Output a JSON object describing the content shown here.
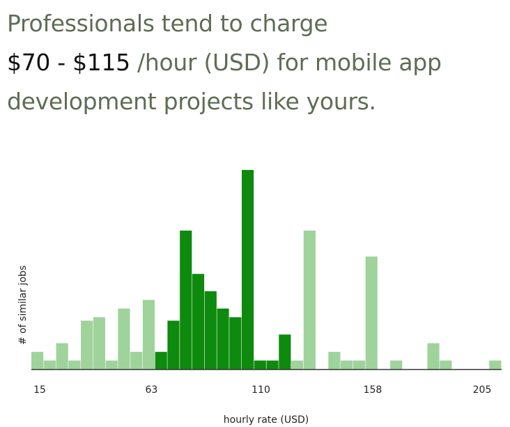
{
  "headline": {
    "line1": "Professionals tend to charge",
    "range": "$70 - $115",
    "line2_rest": " /hour (USD) for mobile app",
    "line3": "development projects like yours."
  },
  "colors": {
    "highlight": "#0e8a0e",
    "muted": "#9fd39b",
    "axis": "#333333"
  },
  "chart_data": {
    "type": "bar",
    "xlabel": "hourly rate (USD)",
    "ylabel": "# of similar jobs",
    "x_ticks": [
      "15",
      "63",
      "110",
      "158",
      "205"
    ],
    "xlim": [
      15,
      205
    ],
    "highlight_range": [
      70,
      115
    ],
    "bins": [
      {
        "value": 1,
        "highlighted": false
      },
      {
        "value": 0.5,
        "highlighted": false
      },
      {
        "value": 1.5,
        "highlighted": false
      },
      {
        "value": 0.5,
        "highlighted": false
      },
      {
        "value": 2.8,
        "highlighted": false
      },
      {
        "value": 3.0,
        "highlighted": false
      },
      {
        "value": 0.5,
        "highlighted": false
      },
      {
        "value": 3.5,
        "highlighted": false
      },
      {
        "value": 1,
        "highlighted": false
      },
      {
        "value": 4,
        "highlighted": false
      },
      {
        "value": 1,
        "highlighted": true
      },
      {
        "value": 2.8,
        "highlighted": true
      },
      {
        "value": 8,
        "highlighted": true
      },
      {
        "value": 5.5,
        "highlighted": true
      },
      {
        "value": 4.5,
        "highlighted": true
      },
      {
        "value": 3.5,
        "highlighted": true
      },
      {
        "value": 3,
        "highlighted": true
      },
      {
        "value": 11.5,
        "highlighted": true
      },
      {
        "value": 0.5,
        "highlighted": true
      },
      {
        "value": 0.5,
        "highlighted": true
      },
      {
        "value": 2,
        "highlighted": true
      },
      {
        "value": 0.5,
        "highlighted": false
      },
      {
        "value": 8,
        "highlighted": false
      },
      {
        "value": 0,
        "highlighted": false
      },
      {
        "value": 1,
        "highlighted": false
      },
      {
        "value": 0.5,
        "highlighted": false
      },
      {
        "value": 0.5,
        "highlighted": false
      },
      {
        "value": 6.5,
        "highlighted": false
      },
      {
        "value": 0,
        "highlighted": false
      },
      {
        "value": 0.5,
        "highlighted": false
      },
      {
        "value": 0,
        "highlighted": false
      },
      {
        "value": 0,
        "highlighted": false
      },
      {
        "value": 1.5,
        "highlighted": false
      },
      {
        "value": 0.5,
        "highlighted": false
      },
      {
        "value": 0,
        "highlighted": false
      },
      {
        "value": 0,
        "highlighted": false
      },
      {
        "value": 0,
        "highlighted": false
      },
      {
        "value": 0.5,
        "highlighted": false
      }
    ]
  }
}
